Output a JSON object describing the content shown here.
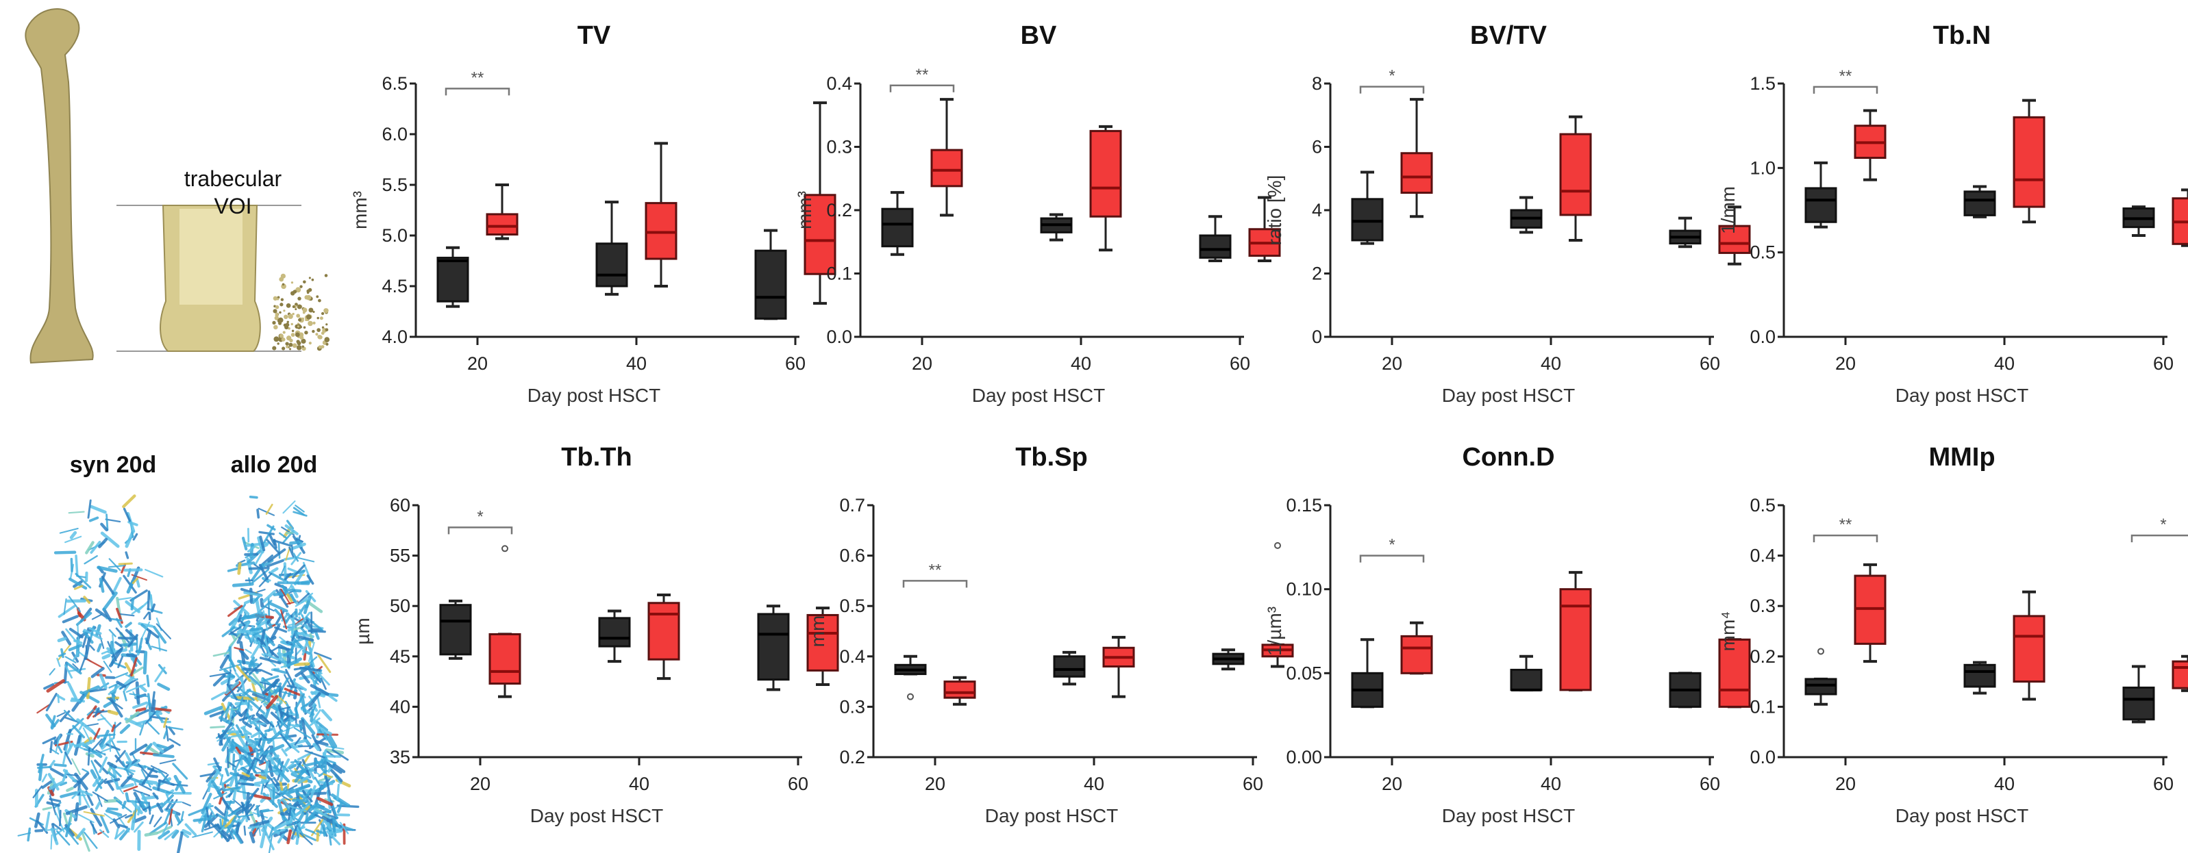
{
  "figure": {
    "voi_label_line1": "trabecular",
    "voi_label_line2": "VOI",
    "syn_label": "syn 20d",
    "allo_label": "allo 20d"
  },
  "colors": {
    "syn": "#2b2b2b",
    "allo": "#f23a3a",
    "allo_median": "#8a0c0c",
    "bone": "#bfb074",
    "scan_blue": "#3aa7d8"
  },
  "chart_data": [
    {
      "type": "box",
      "title": "TV",
      "ylabel": "mm³",
      "xlabel": "Day post HSCT",
      "categories": [
        "20",
        "40",
        "60"
      ],
      "ylim": [
        4.0,
        6.5
      ],
      "yticks": [
        "4.0",
        "4.5",
        "5.0",
        "5.5",
        "6.0",
        "6.5"
      ],
      "series": [
        {
          "name": "syn",
          "boxes": [
            [
              4.3,
              4.35,
              4.75,
              4.78,
              4.88
            ],
            [
              4.42,
              4.5,
              4.61,
              4.92,
              5.33
            ],
            [
              4.18,
              4.18,
              4.39,
              4.85,
              5.05
            ]
          ],
          "outliers": [
            [],
            [],
            []
          ]
        },
        {
          "name": "allo",
          "boxes": [
            [
              4.97,
              5.01,
              5.09,
              5.21,
              5.5
            ],
            [
              4.5,
              4.77,
              5.03,
              5.32,
              5.91
            ],
            [
              4.33,
              4.62,
              4.95,
              5.4,
              6.31
            ]
          ],
          "outliers": [
            [],
            [],
            []
          ]
        }
      ],
      "significance": [
        {
          "category": "20",
          "label": "**",
          "level": 6.45
        }
      ]
    },
    {
      "type": "box",
      "title": "BV",
      "ylabel": "mm³",
      "xlabel": "Day post HSCT",
      "categories": [
        "20",
        "40",
        "60"
      ],
      "ylim": [
        0.0,
        0.4
      ],
      "yticks": [
        "0.0",
        "0.1",
        "0.2",
        "0.3",
        "0.4"
      ],
      "series": [
        {
          "name": "syn",
          "boxes": [
            [
              0.13,
              0.143,
              0.178,
              0.202,
              0.228
            ],
            [
              0.153,
              0.165,
              0.177,
              0.187,
              0.193
            ],
            [
              0.12,
              0.125,
              0.138,
              0.16,
              0.19
            ]
          ],
          "outliers": [
            [],
            [],
            []
          ]
        },
        {
          "name": "allo",
          "boxes": [
            [
              0.192,
              0.238,
              0.263,
              0.295,
              0.375
            ],
            [
              0.137,
              0.19,
              0.235,
              0.325,
              0.332
            ],
            [
              0.12,
              0.128,
              0.148,
              0.17,
              0.22
            ]
          ],
          "outliers": [
            [],
            [],
            []
          ]
        }
      ],
      "significance": [
        {
          "category": "20",
          "label": "**",
          "level": 0.397
        }
      ]
    },
    {
      "type": "box",
      "title": "BV/TV",
      "ylabel": "ratio [%]",
      "xlabel": "Day post HSCT",
      "categories": [
        "20",
        "40",
        "60"
      ],
      "ylim": [
        0,
        8
      ],
      "yticks": [
        "0",
        "2",
        "4",
        "6",
        "8"
      ],
      "series": [
        {
          "name": "syn",
          "boxes": [
            [
              2.95,
              3.05,
              3.65,
              4.35,
              5.2
            ],
            [
              3.3,
              3.45,
              3.75,
              4.0,
              4.4
            ],
            [
              2.85,
              2.95,
              3.15,
              3.35,
              3.75
            ]
          ],
          "outliers": [
            [],
            [],
            []
          ]
        },
        {
          "name": "allo",
          "boxes": [
            [
              3.8,
              4.55,
              5.05,
              5.8,
              7.5
            ],
            [
              3.05,
              3.85,
              4.6,
              6.4,
              6.95
            ],
            [
              2.3,
              2.65,
              2.95,
              3.5,
              4.1
            ]
          ],
          "outliers": [
            [],
            [],
            []
          ]
        }
      ],
      "significance": [
        {
          "category": "20",
          "label": "*",
          "level": 7.9
        }
      ]
    },
    {
      "type": "box",
      "title": "Tb.N",
      "ylabel": "1/mm",
      "xlabel": "Day post HSCT",
      "categories": [
        "20",
        "40",
        "60"
      ],
      "ylim": [
        0.0,
        1.5
      ],
      "yticks": [
        "0.0",
        "0.5",
        "1.0",
        "1.5"
      ],
      "series": [
        {
          "name": "syn",
          "boxes": [
            [
              0.65,
              0.68,
              0.81,
              0.88,
              1.03
            ],
            [
              0.71,
              0.72,
              0.81,
              0.86,
              0.89
            ],
            [
              0.6,
              0.65,
              0.7,
              0.76,
              0.77
            ]
          ],
          "outliers": [
            [],
            [],
            []
          ]
        },
        {
          "name": "allo",
          "boxes": [
            [
              0.93,
              1.06,
              1.15,
              1.25,
              1.34
            ],
            [
              0.68,
              0.77,
              0.93,
              1.3,
              1.4
            ],
            [
              0.54,
              0.55,
              0.68,
              0.82,
              0.87
            ]
          ],
          "outliers": [
            [],
            [],
            []
          ]
        }
      ],
      "significance": [
        {
          "category": "20",
          "label": "**",
          "level": 1.48
        }
      ]
    },
    {
      "type": "box",
      "title": "Tb.Th",
      "ylabel": "µm",
      "xlabel": "Day post HSCT",
      "categories": [
        "20",
        "40",
        "60"
      ],
      "ylim": [
        35,
        60
      ],
      "yticks": [
        "35",
        "40",
        "45",
        "50",
        "55",
        "60"
      ],
      "series": [
        {
          "name": "syn",
          "boxes": [
            [
              44.8,
              45.2,
              48.5,
              50.1,
              50.5
            ],
            [
              44.5,
              46.0,
              46.8,
              48.8,
              49.5
            ],
            [
              41.7,
              42.7,
              47.2,
              49.2,
              50.0
            ]
          ],
          "outliers": [
            [],
            [],
            []
          ]
        },
        {
          "name": "allo",
          "boxes": [
            [
              41.0,
              42.3,
              43.5,
              47.2,
              47.2
            ],
            [
              42.8,
              44.7,
              49.2,
              50.3,
              51.1
            ],
            [
              42.2,
              43.6,
              47.3,
              49.1,
              49.8
            ]
          ],
          "outliers": [
            [
              55.7
            ],
            [],
            []
          ]
        }
      ],
      "significance": [
        {
          "category": "20",
          "label": "*",
          "level": 57.8
        }
      ]
    },
    {
      "type": "box",
      "title": "Tb.Sp",
      "ylabel": "mm",
      "xlabel": "Day post HSCT",
      "categories": [
        "20",
        "40",
        "60"
      ],
      "ylim": [
        0.2,
        0.7
      ],
      "yticks": [
        "0.2",
        "0.3",
        "0.4",
        "0.5",
        "0.6",
        "0.7"
      ],
      "series": [
        {
          "name": "syn",
          "boxes": [
            [
              0.365,
              0.365,
              0.373,
              0.383,
              0.4
            ],
            [
              0.345,
              0.36,
              0.374,
              0.4,
              0.408
            ],
            [
              0.375,
              0.385,
              0.395,
              0.405,
              0.413
            ]
          ],
          "outliers": [
            [
              0.32
            ],
            [],
            []
          ]
        },
        {
          "name": "allo",
          "boxes": [
            [
              0.305,
              0.318,
              0.328,
              0.35,
              0.358
            ],
            [
              0.32,
              0.38,
              0.398,
              0.417,
              0.438
            ],
            [
              0.38,
              0.4,
              0.413,
              0.423,
              0.423
            ]
          ],
          "outliers": [
            [],
            [],
            [
              0.62
            ]
          ]
        }
      ],
      "significance": [
        {
          "category": "20",
          "label": "**",
          "level": 0.55
        }
      ]
    },
    {
      "type": "box",
      "title": "Conn.D",
      "ylabel": "1/µm³",
      "xlabel": "Day post HSCT",
      "categories": [
        "20",
        "40",
        "60"
      ],
      "ylim": [
        0.0,
        0.15
      ],
      "yticks": [
        "0.00",
        "0.05",
        "0.10",
        "0.15"
      ],
      "series": [
        {
          "name": "syn",
          "boxes": [
            [
              0.03,
              0.03,
              0.04,
              0.05,
              0.07
            ],
            [
              0.04,
              0.04,
              0.04,
              0.052,
              0.06
            ],
            [
              0.03,
              0.03,
              0.04,
              0.05,
              0.05
            ]
          ],
          "outliers": [
            [],
            [],
            []
          ]
        },
        {
          "name": "allo",
          "boxes": [
            [
              0.05,
              0.05,
              0.065,
              0.072,
              0.08
            ],
            [
              0.04,
              0.04,
              0.09,
              0.1,
              0.11
            ],
            [
              0.03,
              0.03,
              0.04,
              0.07,
              0.07
            ]
          ],
          "outliers": [
            [],
            [],
            []
          ]
        }
      ],
      "significance": [
        {
          "category": "20",
          "label": "*",
          "level": 0.12
        }
      ]
    },
    {
      "type": "box",
      "title": "MMIp",
      "ylabel": "mm⁴",
      "xlabel": "Day post HSCT",
      "categories": [
        "20",
        "40",
        "60"
      ],
      "ylim": [
        0.0,
        0.5
      ],
      "yticks": [
        "0.0",
        "0.1",
        "0.2",
        "0.3",
        "0.4",
        "0.5"
      ],
      "series": [
        {
          "name": "syn",
          "boxes": [
            [
              0.105,
              0.125,
              0.143,
              0.155,
              0.155
            ],
            [
              0.127,
              0.14,
              0.17,
              0.183,
              0.188
            ],
            [
              0.07,
              0.075,
              0.115,
              0.138,
              0.18
            ]
          ],
          "outliers": [
            [
              0.21
            ],
            [],
            []
          ]
        },
        {
          "name": "allo",
          "boxes": [
            [
              0.19,
              0.225,
              0.295,
              0.36,
              0.382
            ],
            [
              0.115,
              0.15,
              0.24,
              0.28,
              0.328
            ],
            [
              0.132,
              0.137,
              0.178,
              0.19,
              0.2
            ]
          ],
          "outliers": [
            [],
            [],
            []
          ]
        }
      ],
      "significance": [
        {
          "category": "20",
          "label": "**",
          "level": 0.44
        },
        {
          "category": "60",
          "label": "*",
          "level": 0.44
        }
      ]
    }
  ]
}
